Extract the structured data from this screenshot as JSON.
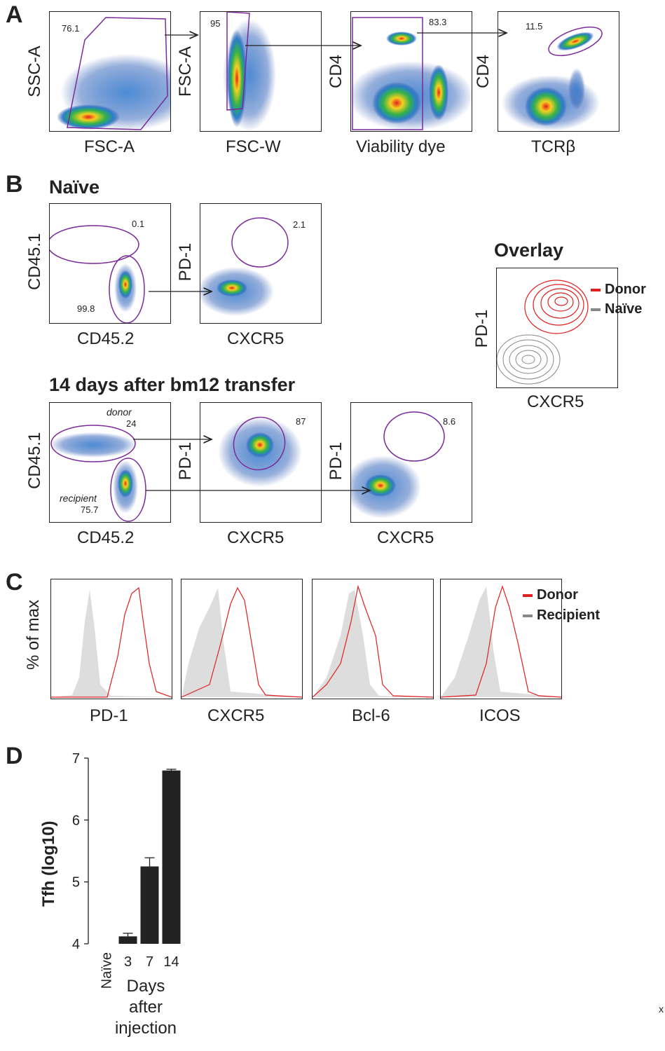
{
  "panels": {
    "a": {
      "letter": "A",
      "plots": [
        {
          "xlabel": "FSC-A",
          "ylabel": "SSC-A",
          "gate": "76.1"
        },
        {
          "xlabel": "FSC-W",
          "ylabel": "FSC-A",
          "gate": "95"
        },
        {
          "xlabel": "Viability dye",
          "ylabel": "CD4",
          "gate": "83.3"
        },
        {
          "xlabel": "TCRβ",
          "ylabel": "CD4",
          "gate": "11.5"
        }
      ]
    },
    "b": {
      "letter": "B",
      "naive_title": "Naïve",
      "naive_plots": [
        {
          "xlabel": "CD45.2",
          "ylabel": "CD45.1",
          "gate_top": "0.1",
          "gate_bottom": "99.8"
        },
        {
          "xlabel": "CXCR5",
          "ylabel": "PD-1",
          "gate": "2.1"
        }
      ],
      "transfer_title": "14 days after bm12 transfer",
      "transfer_plots": [
        {
          "xlabel": "CD45.2",
          "ylabel": "CD45.1",
          "donor_label": "donor",
          "donor_value": "24",
          "recipient_label": "recipient",
          "recipient_value": "75.7"
        },
        {
          "xlabel": "CXCR5",
          "ylabel": "PD-1",
          "gate": "87"
        },
        {
          "xlabel": "CXCR5",
          "ylabel": "PD-1",
          "gate": "8.6"
        }
      ],
      "overlay": {
        "title": "Overlay",
        "xlabel": "CXCR5",
        "ylabel": "PD-1",
        "legend": [
          {
            "label": "Donor",
            "color": "#e02020"
          },
          {
            "label": "Naïve",
            "color": "#888888"
          }
        ]
      }
    },
    "c": {
      "letter": "C",
      "ylabel": "% of max",
      "xlabels": [
        "PD-1",
        "CXCR5",
        "Bcl-6",
        "ICOS"
      ],
      "legend": [
        {
          "label": "Donor",
          "color": "#e02020"
        },
        {
          "label": "Recipient",
          "color": "#888888"
        }
      ]
    },
    "d": {
      "letter": "D",
      "ylabel": "Tfh (log10)",
      "xtitle_lines": [
        "Days",
        "after",
        "injection"
      ]
    }
  },
  "chart_data": {
    "type": "bar",
    "title": "",
    "xlabel": "Days after injection",
    "ylabel": "Tfh (log10)",
    "categories": [
      "Naïve",
      "3",
      "7",
      "14"
    ],
    "values": [
      4.0,
      4.12,
      5.25,
      6.8
    ],
    "errors": [
      0.0,
      0.05,
      0.14,
      0.02
    ],
    "ylim": [
      4,
      7
    ],
    "yticks": [
      4,
      5,
      6,
      7
    ],
    "bar_color": "#222222"
  },
  "footer_mark": "x"
}
